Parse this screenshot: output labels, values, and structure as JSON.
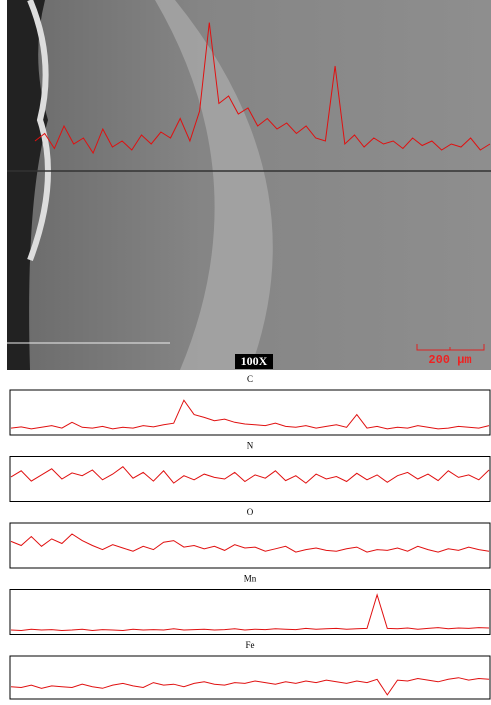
{
  "image": {
    "magnification": "100X",
    "scale_bar": "200 µm",
    "overlay_profile": [
      20,
      25,
      15,
      30,
      18,
      22,
      12,
      28,
      16,
      20,
      14,
      24,
      18,
      26,
      22,
      35,
      20,
      40,
      99,
      45,
      50,
      38,
      42,
      30,
      35,
      28,
      32,
      25,
      30,
      22,
      20,
      70,
      18,
      24,
      16,
      22,
      18,
      20,
      15,
      22,
      17,
      20,
      14,
      18,
      16,
      22,
      14,
      18
    ]
  },
  "profiles": [
    {
      "name": "C",
      "values": [
        12,
        15,
        10,
        14,
        18,
        12,
        26,
        14,
        12,
        16,
        10,
        14,
        12,
        18,
        15,
        20,
        24,
        80,
        45,
        38,
        30,
        34,
        26,
        22,
        20,
        18,
        24,
        16,
        14,
        18,
        12,
        16,
        20,
        14,
        45,
        12,
        16,
        10,
        14,
        12,
        18,
        14,
        10,
        12,
        16,
        14,
        12,
        18
      ]
    },
    {
      "name": "N",
      "values": [
        55,
        70,
        45,
        60,
        75,
        50,
        65,
        58,
        72,
        48,
        62,
        80,
        52,
        66,
        45,
        70,
        40,
        58,
        48,
        62,
        54,
        50,
        66,
        44,
        60,
        52,
        70,
        46,
        58,
        40,
        62,
        50,
        56,
        44,
        64,
        48,
        60,
        42,
        58,
        66,
        50,
        62,
        46,
        70,
        54,
        60,
        48,
        72
      ]
    },
    {
      "name": "O",
      "values": [
        60,
        50,
        72,
        48,
        66,
        55,
        78,
        62,
        50,
        40,
        52,
        44,
        36,
        48,
        40,
        58,
        62,
        46,
        50,
        42,
        48,
        38,
        52,
        44,
        46,
        36,
        42,
        48,
        34,
        40,
        44,
        38,
        36,
        42,
        46,
        34,
        40,
        38,
        44,
        36,
        48,
        40,
        34,
        42,
        38,
        46,
        40,
        36
      ]
    },
    {
      "name": "Mn",
      "values": [
        6,
        5,
        8,
        6,
        7,
        5,
        6,
        8,
        5,
        7,
        6,
        5,
        8,
        6,
        7,
        6,
        9,
        6,
        7,
        8,
        6,
        7,
        9,
        6,
        8,
        7,
        9,
        8,
        7,
        10,
        8,
        9,
        10,
        8,
        9,
        10,
        92,
        10,
        9,
        11,
        8,
        10,
        12,
        9,
        11,
        10,
        12,
        11
      ]
    },
    {
      "name": "Fe",
      "values": [
        30,
        28,
        34,
        26,
        32,
        30,
        28,
        36,
        30,
        26,
        34,
        38,
        32,
        28,
        40,
        34,
        36,
        30,
        38,
        42,
        36,
        34,
        40,
        38,
        44,
        40,
        36,
        42,
        38,
        44,
        40,
        46,
        42,
        38,
        44,
        40,
        48,
        10,
        46,
        44,
        50,
        46,
        42,
        48,
        52,
        46,
        50,
        48
      ]
    }
  ]
}
